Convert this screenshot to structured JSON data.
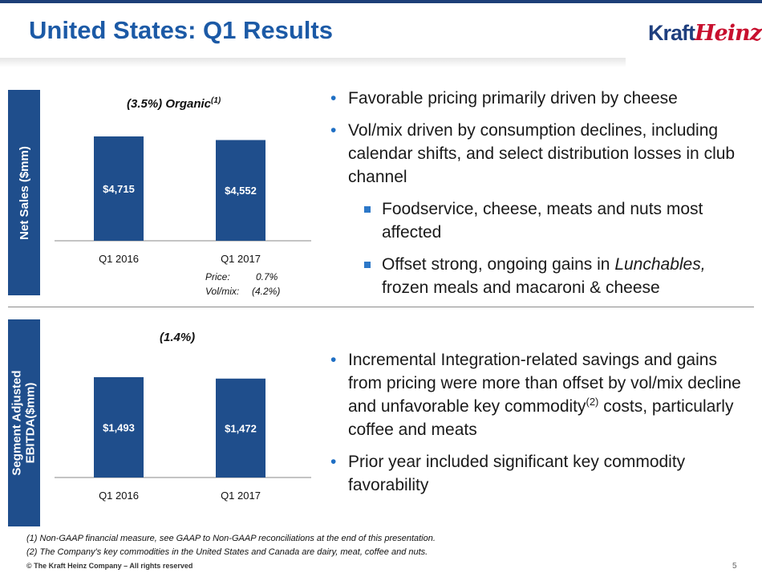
{
  "header": {
    "title": "United States: Q1 Results",
    "logo_part1": "Kraft",
    "logo_part2": "Heinz"
  },
  "colors": {
    "bar": "#1f4e8c",
    "title": "#1c5aa6",
    "side_label": "#1f4e8c",
    "bullet": "#1f6fc4"
  },
  "section_net_sales": {
    "side_label": "Net Sales ($mm)",
    "chart_title": "(3.5%) Organic",
    "chart_title_sup": "(1)",
    "price_label": "Price:",
    "price_value": "0.7%",
    "volmix_label": "Vol/mix:",
    "volmix_value": "(4.2%)",
    "bullets": [
      {
        "text": "Favorable pricing primarily driven by cheese"
      },
      {
        "text": "Vol/mix driven by consumption declines, including calendar shifts, and select distribution losses in club channel"
      }
    ],
    "sub_bullets": [
      {
        "text": "Foodservice, cheese, meats and nuts most affected"
      },
      {
        "text_pre": "Offset strong, ongoing gains in ",
        "text_italic": "Lunchables,",
        "text_post": " frozen meals and macaroni & cheese"
      }
    ]
  },
  "section_ebitda": {
    "side_label": "Segment Adjusted\nEBITDA($mm)",
    "chart_title": "(1.4%)",
    "bullets": [
      {
        "text_pre": "Incremental Integration-related savings and gains from pricing were more than offset by vol/mix decline and unfavorable key commodity",
        "sup": "(2)",
        "text_post": " costs, particularly coffee and meats"
      },
      {
        "text": "Prior year included significant key commodity favorability"
      }
    ]
  },
  "chart_data": [
    {
      "type": "bar",
      "title": "(3.5%) Organic(1)",
      "categories": [
        "Q1 2016",
        "Q1 2017"
      ],
      "values": [
        4715,
        4552
      ],
      "labels": [
        "$4,715",
        "$4,552"
      ],
      "ylabel": "Net Sales ($mm)"
    },
    {
      "type": "bar",
      "title": "(1.4%)",
      "categories": [
        "Q1 2016",
        "Q1 2017"
      ],
      "values": [
        1493,
        1472
      ],
      "labels": [
        "$1,493",
        "$1,472"
      ],
      "ylabel": "Segment Adjusted EBITDA($mm)"
    }
  ],
  "footnotes": [
    "(1)   Non-GAAP financial measure, see GAAP to Non-GAAP reconciliations at the end of this presentation.",
    "(2)   The Company's key commodities in the United States and Canada are dairy, meat, coffee and nuts."
  ],
  "copyright": "© The Kraft Heinz Company – All rights reserved",
  "page_number": "5"
}
